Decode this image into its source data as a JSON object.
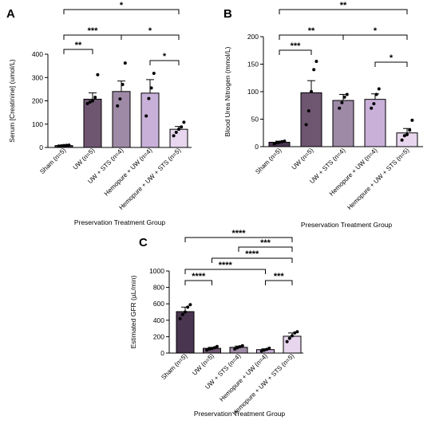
{
  "chart_data": [
    {
      "panel": "A",
      "type": "bar",
      "ylabel": "Serum [Creatinine] (umol/L)",
      "xlabel": "Preservation Treatment Group",
      "ylim": [
        0,
        400
      ],
      "yticks": [
        0,
        100,
        200,
        300,
        400
      ],
      "categories": [
        "Sham (n=5)",
        "UW (n=5)",
        "UW + STS (n=4)",
        "Hemopure + UW (n=4)",
        "Hemopure + UW + STS (n=5)"
      ],
      "values": [
        8,
        207,
        240,
        233,
        78
      ],
      "errors": [
        2,
        27,
        45,
        58,
        12
      ],
      "colors": [
        "#4a3550",
        "#6e5570",
        "#9e8aa6",
        "#c8b0d8",
        "#e8d6ee"
      ],
      "points": [
        [
          6,
          7,
          8,
          9,
          10
        ],
        [
          188,
          195,
          200,
          215,
          312
        ],
        [
          178,
          208,
          270,
          362
        ],
        [
          135,
          210,
          255,
          318
        ],
        [
          50,
          65,
          78,
          88,
          108
        ]
      ],
      "significance": [
        {
          "from": 0,
          "to": 1,
          "label": "**"
        },
        {
          "from": 3,
          "to": 4,
          "label": "*"
        },
        {
          "from": 0,
          "to": 2,
          "label": "***"
        },
        {
          "from": 2,
          "to": 4,
          "label": "*"
        },
        {
          "from": 0,
          "to": 4,
          "label": "*"
        }
      ]
    },
    {
      "panel": "B",
      "type": "bar",
      "ylabel": "Blood Urea Nitrogen (mmol/L)",
      "xlabel": "Preservation Treatment Group",
      "ylim": [
        0,
        200
      ],
      "yticks": [
        0,
        50,
        100,
        150,
        200
      ],
      "categories": [
        "Sham (n=5)",
        "UW (n=5)",
        "UW + STS (n=4)",
        "Hemopure + UW (n=4)",
        "Hemopure + UW + STS (n=5)"
      ],
      "values": [
        8,
        98,
        84,
        86,
        25
      ],
      "errors": [
        2,
        22,
        11,
        10,
        8
      ],
      "colors": [
        "#4a3550",
        "#6e5570",
        "#9e8aa6",
        "#c8b0d8",
        "#e8d6ee"
      ],
      "points": [
        [
          5,
          7,
          8,
          9,
          10
        ],
        [
          40,
          65,
          100,
          140,
          155
        ],
        [
          70,
          80,
          90,
          95
        ],
        [
          70,
          78,
          95,
          105
        ],
        [
          12,
          20,
          22,
          30,
          48
        ]
      ],
      "significance": [
        {
          "from": 0,
          "to": 1,
          "label": "***"
        },
        {
          "from": 3,
          "to": 4,
          "label": "*"
        },
        {
          "from": 0,
          "to": 2,
          "label": "**"
        },
        {
          "from": 2,
          "to": 4,
          "label": "*"
        },
        {
          "from": 0,
          "to": 4,
          "label": "**"
        }
      ]
    },
    {
      "panel": "C",
      "type": "bar",
      "ylabel": "Estimated GFR (µL/min)",
      "xlabel": "Preservation Treatment Group",
      "ylim": [
        0,
        1000
      ],
      "yticks": [
        0,
        200,
        400,
        600,
        800,
        1000
      ],
      "categories": [
        "Sham (n=5)",
        "UW (n=5)",
        "UW + STS (n=4)",
        "Hemopure + UW (n=4)",
        "Hemopure + UW + STS (n=5)"
      ],
      "values": [
        505,
        58,
        70,
        42,
        205
      ],
      "errors": [
        55,
        12,
        15,
        10,
        40
      ],
      "colors": [
        "#4a3550",
        "#6e5570",
        "#9e8aa6",
        "#c8b0d8",
        "#e8d6ee"
      ],
      "points": [
        [
          420,
          470,
          500,
          560,
          590
        ],
        [
          38,
          50,
          55,
          65,
          80
        ],
        [
          50,
          65,
          78,
          90
        ],
        [
          25,
          35,
          45,
          60
        ],
        [
          140,
          180,
          210,
          245,
          260
        ]
      ],
      "significance": [
        {
          "from": 0,
          "to": 1,
          "label": "****"
        },
        {
          "from": 3,
          "to": 4,
          "label": "***"
        },
        {
          "from": 0,
          "to": 3,
          "label": "****"
        },
        {
          "from": 1,
          "to": 4,
          "label": "****"
        },
        {
          "from": 2,
          "to": 4,
          "label": "***"
        },
        {
          "from": 0,
          "to": 4,
          "label": "****"
        }
      ]
    }
  ]
}
